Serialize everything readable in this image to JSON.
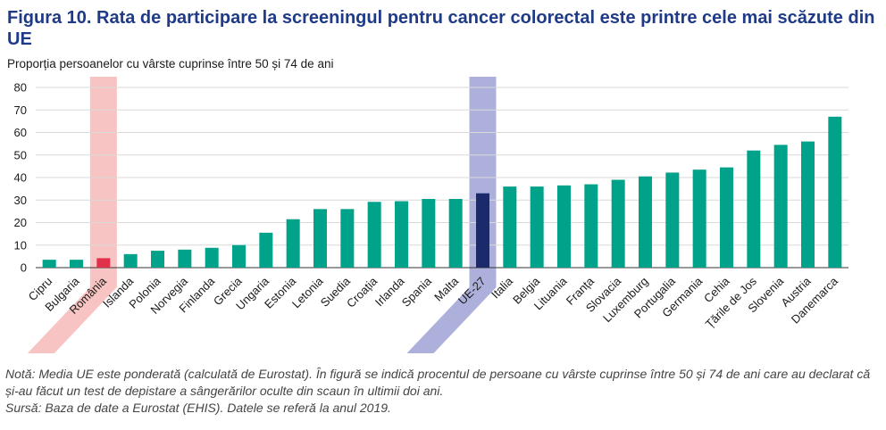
{
  "header": {
    "title": "Figura 10. Rata de participare la screeningul pentru cancer colorectal este printre cele mai scăzute din UE",
    "subtitle": "Proporția persoanelor cu vârste cuprinse între 50 și 74 de ani"
  },
  "notes": {
    "line1": "Notă: Media UE este ponderată (calculată de Eurostat). În figură se indică procentul de persoane cu vârste cuprinse între 50 și 74 de ani care au declarat că și-au făcut un test de depistare a sângerărilor oculte din scaun în ultimii doi ani.",
    "line2": "Sursă: Baza de date a Eurostat (EHIS). Datele se referă la anul 2019."
  },
  "colors": {
    "bar": "#00a28a",
    "highlight_romania": "#e0304a",
    "highlight_eu": "#1b2a6b",
    "band_romania": "#f8c3c3",
    "band_eu": "#aeb0dc",
    "title": "#1f3a87"
  },
  "chart_data": {
    "type": "bar",
    "categories": [
      "Cipru",
      "Bulgaria",
      "România",
      "Islanda",
      "Polonia",
      "Norvegia",
      "Finlanda",
      "Grecia",
      "Ungaria",
      "Estonia",
      "Letonia",
      "Suedia",
      "Croația",
      "Irlanda",
      "Spania",
      "Malta",
      "UE-27",
      "Italia",
      "Belgia",
      "Lituania",
      "Franța",
      "Slovacia",
      "Luxemburg",
      "Portugalia",
      "Germania",
      "Cehia",
      "Țările de Jos",
      "Slovenia",
      "Austria",
      "Danemarca"
    ],
    "values": [
      3.5,
      3.5,
      4.2,
      6,
      7.5,
      8,
      8.8,
      10,
      15.5,
      21.5,
      26,
      26,
      29.2,
      29.5,
      30.5,
      30.5,
      33,
      36,
      36,
      36.5,
      37,
      39,
      40.5,
      42.2,
      43.5,
      44.5,
      52,
      54.5,
      56,
      67
    ],
    "highlights": {
      "România": "highlight_romania",
      "UE-27": "highlight_eu"
    },
    "ylim": [
      0,
      80
    ],
    "yticks": [
      0,
      10,
      20,
      30,
      40,
      50,
      60,
      70,
      80
    ],
    "grid": true,
    "title": "Figura 10. Rata de participare la screeningul pentru cancer colorectal este printre cele mai scăzute din UE",
    "ylabel": "Proporția persoanelor cu vârste cuprinse între 50 și 74 de ani",
    "xlabel": ""
  }
}
